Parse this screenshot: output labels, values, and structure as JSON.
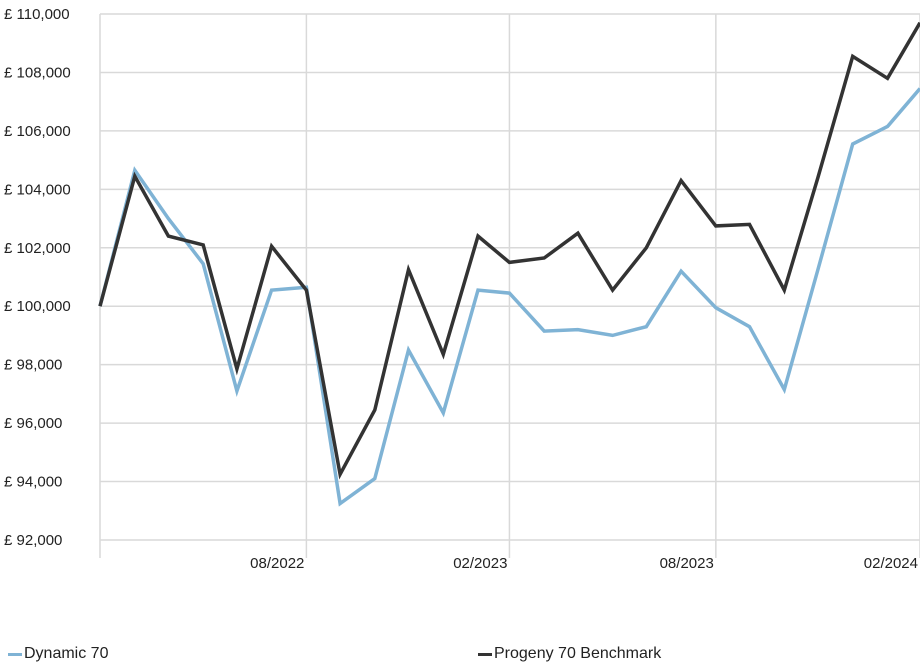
{
  "chart_data": {
    "type": "line",
    "currency_prefix": "£ ",
    "y_ticks": [
      92000,
      94000,
      96000,
      98000,
      100000,
      102000,
      104000,
      106000,
      108000,
      110000
    ],
    "y_tick_labels": [
      "£ 92,000",
      "£ 94,000",
      "£ 96,000",
      "£ 98,000",
      "£ 100,000",
      "£ 102,000",
      "£ 104,000",
      "£ 106,000",
      "£ 108,000",
      "£ 110,000"
    ],
    "ylim": [
      92000,
      110000
    ],
    "x": [
      "2022-02-28",
      "2022-03-31",
      "2022-04-30",
      "2022-05-31",
      "2022-06-30",
      "2022-07-31",
      "2022-08-31",
      "2022-09-30",
      "2022-10-31",
      "2022-11-30",
      "2022-12-31",
      "2023-01-31",
      "2023-02-28",
      "2023-03-31",
      "2023-04-30",
      "2023-05-31",
      "2023-06-30",
      "2023-07-31",
      "2023-08-31",
      "2023-09-30",
      "2023-10-31",
      "2023-11-30",
      "2023-12-31",
      "2024-01-31",
      "2024-02-29"
    ],
    "x_ticks": [
      {
        "date": "2022-08-31",
        "label": "08/2022"
      },
      {
        "date": "2023-02-28",
        "label": "02/2023"
      },
      {
        "date": "2023-08-31",
        "label": "08/2023"
      },
      {
        "date": "2024-02-29",
        "label": "02/2024"
      }
    ],
    "grid": true,
    "legend_position": "bottom",
    "series": [
      {
        "name": "Dynamic 70",
        "color": "#7fb3d5",
        "values": [
          100000,
          104650,
          103000,
          101450,
          97100,
          100550,
          100650,
          93250,
          94100,
          98500,
          96350,
          100550,
          100450,
          99150,
          99200,
          99000,
          99300,
          101200,
          99950,
          99300,
          97150,
          101250,
          105550,
          106150,
          107450
        ]
      },
      {
        "name": "Progeny 70 Benchmark",
        "color": "#333333",
        "values": [
          100000,
          104450,
          102400,
          102100,
          97850,
          102050,
          100550,
          94250,
          96450,
          101250,
          98350,
          102400,
          101500,
          101650,
          102500,
          100550,
          102000,
          104300,
          102750,
          102800,
          100550,
          104400,
          108550,
          107800,
          109700
        ]
      }
    ]
  },
  "legend": {
    "items": [
      {
        "label": "Dynamic 70",
        "color": "#7fb3d5"
      },
      {
        "label": "Progeny 70 Benchmark",
        "color": "#333333"
      }
    ]
  }
}
